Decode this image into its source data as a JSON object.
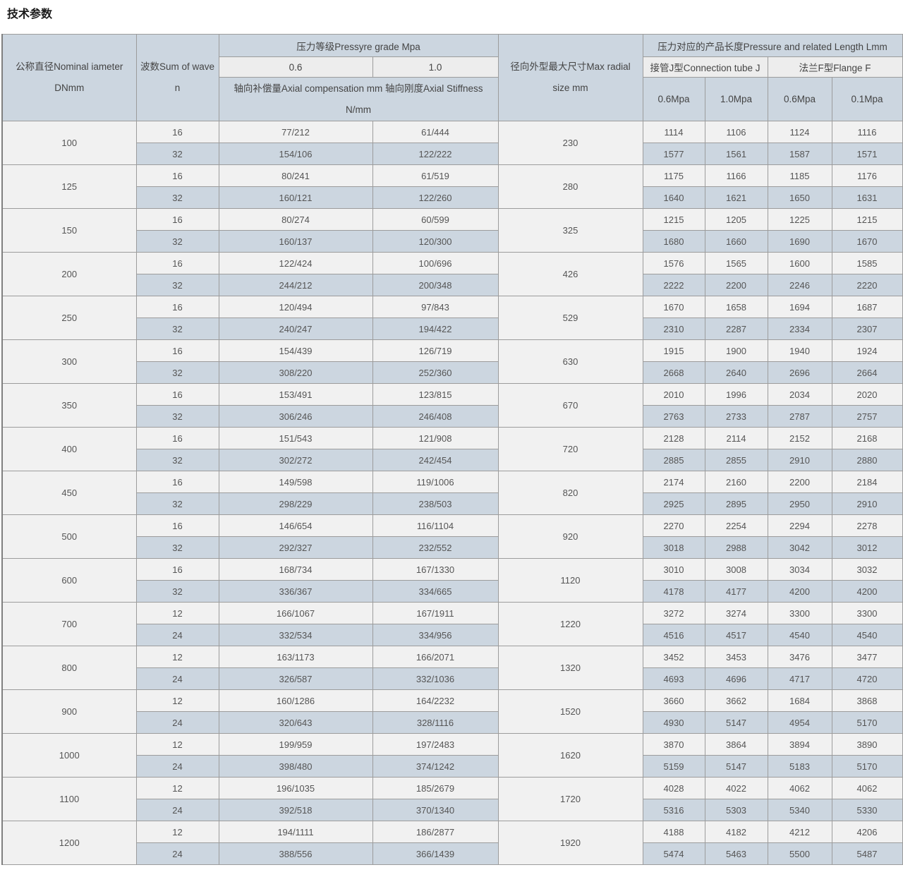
{
  "page": {
    "title": "技术参数"
  },
  "colors": {
    "header_bg": "#ccd6e0",
    "subheader_bg": "#ededed",
    "row_light_bg": "#f1f1f1",
    "row_blue_bg": "#ccd6e0",
    "border": "#9c9c9c",
    "text": "#555555"
  },
  "table": {
    "header": {
      "dn": [
        "公称直径Nominal iameter",
        "DNmm"
      ],
      "wave": [
        "波数Sum of wave",
        "n"
      ],
      "pressure_grade": "压力等级Pressyre grade Mpa",
      "grade_06": "0.6",
      "grade_10": "1.0",
      "axial": [
        "轴向补偿量Axial compensation mm 轴向刚度Axial Stiffness",
        "N/mm"
      ],
      "radial": [
        "径向外型最大尺寸Max radial",
        "size mm"
      ],
      "length": "压力对应的产品长度Pressure and related Length Lmm",
      "conn_j": "接管J型Connection tube J",
      "flange_f": "法兰F型Flange F",
      "j_06": "0.6Mpa",
      "j_10": "1.0Mpa",
      "f_06": "0.6Mpa",
      "f_01": "0.1Mpa"
    },
    "groups": [
      {
        "dn": "100",
        "radial": "230",
        "rows": [
          {
            "n": "16",
            "c06": "77/212",
            "c10": "61/444",
            "j06": "1114",
            "j10": "1106",
            "f06": "1124",
            "f01": "1116"
          },
          {
            "n": "32",
            "c06": "154/106",
            "c10": "122/222",
            "j06": "1577",
            "j10": "1561",
            "f06": "1587",
            "f01": "1571"
          }
        ]
      },
      {
        "dn": "125",
        "radial": "280",
        "rows": [
          {
            "n": "16",
            "c06": "80/241",
            "c10": "61/519",
            "j06": "1175",
            "j10": "1166",
            "f06": "1185",
            "f01": "1176"
          },
          {
            "n": "32",
            "c06": "160/121",
            "c10": "122/260",
            "j06": "1640",
            "j10": "1621",
            "f06": "1650",
            "f01": "1631"
          }
        ]
      },
      {
        "dn": "150",
        "radial": "325",
        "rows": [
          {
            "n": "16",
            "c06": "80/274",
            "c10": "60/599",
            "j06": "1215",
            "j10": "1205",
            "f06": "1225",
            "f01": "1215"
          },
          {
            "n": "32",
            "c06": "160/137",
            "c10": "120/300",
            "j06": "1680",
            "j10": "1660",
            "f06": "1690",
            "f01": "1670"
          }
        ]
      },
      {
        "dn": "200",
        "radial": "426",
        "rows": [
          {
            "n": "16",
            "c06": "122/424",
            "c10": "100/696",
            "j06": "1576",
            "j10": "1565",
            "f06": "1600",
            "f01": "1585"
          },
          {
            "n": "32",
            "c06": "244/212",
            "c10": "200/348",
            "j06": "2222",
            "j10": "2200",
            "f06": "2246",
            "f01": "2220"
          }
        ]
      },
      {
        "dn": "250",
        "radial": "529",
        "rows": [
          {
            "n": "16",
            "c06": "120/494",
            "c10": "97/843",
            "j06": "1670",
            "j10": "1658",
            "f06": "1694",
            "f01": "1687"
          },
          {
            "n": "32",
            "c06": "240/247",
            "c10": "194/422",
            "j06": "2310",
            "j10": "2287",
            "f06": "2334",
            "f01": "2307"
          }
        ]
      },
      {
        "dn": "300",
        "radial": "630",
        "rows": [
          {
            "n": "16",
            "c06": "154/439",
            "c10": "126/719",
            "j06": "1915",
            "j10": "1900",
            "f06": "1940",
            "f01": "1924"
          },
          {
            "n": "32",
            "c06": "308/220",
            "c10": "252/360",
            "j06": "2668",
            "j10": "2640",
            "f06": "2696",
            "f01": "2664"
          }
        ]
      },
      {
        "dn": "350",
        "radial": "670",
        "rows": [
          {
            "n": "16",
            "c06": "153/491",
            "c10": "123/815",
            "j06": "2010",
            "j10": "1996",
            "f06": "2034",
            "f01": "2020"
          },
          {
            "n": "32",
            "c06": "306/246",
            "c10": "246/408",
            "j06": "2763",
            "j10": "2733",
            "f06": "2787",
            "f01": "2757"
          }
        ]
      },
      {
        "dn": "400",
        "radial": "720",
        "rows": [
          {
            "n": "16",
            "c06": "151/543",
            "c10": "121/908",
            "j06": "2128",
            "j10": "2114",
            "f06": "2152",
            "f01": "2168"
          },
          {
            "n": "32",
            "c06": "302/272",
            "c10": "242/454",
            "j06": "2885",
            "j10": "2855",
            "f06": "2910",
            "f01": "2880"
          }
        ]
      },
      {
        "dn": "450",
        "radial": "820",
        "rows": [
          {
            "n": "16",
            "c06": "149/598",
            "c10": "119/1006",
            "j06": "2174",
            "j10": "2160",
            "f06": "2200",
            "f01": "2184"
          },
          {
            "n": "32",
            "c06": "298/229",
            "c10": "238/503",
            "j06": "2925",
            "j10": "2895",
            "f06": "2950",
            "f01": "2910"
          }
        ]
      },
      {
        "dn": "500",
        "radial": "920",
        "rows": [
          {
            "n": "16",
            "c06": "146/654",
            "c10": "116/1104",
            "j06": "2270",
            "j10": "2254",
            "f06": "2294",
            "f01": "2278"
          },
          {
            "n": "32",
            "c06": "292/327",
            "c10": "232/552",
            "j06": "3018",
            "j10": "2988",
            "f06": "3042",
            "f01": "3012"
          }
        ]
      },
      {
        "dn": "600",
        "radial": "1120",
        "rows": [
          {
            "n": "16",
            "c06": "168/734",
            "c10": "167/1330",
            "j06": "3010",
            "j10": "3008",
            "f06": "3034",
            "f01": "3032"
          },
          {
            "n": "32",
            "c06": "336/367",
            "c10": "334/665",
            "j06": "4178",
            "j10": "4177",
            "f06": "4200",
            "f01": "4200"
          }
        ]
      },
      {
        "dn": "700",
        "radial": "1220",
        "rows": [
          {
            "n": "12",
            "c06": "166/1067",
            "c10": "167/1911",
            "j06": "3272",
            "j10": "3274",
            "f06": "3300",
            "f01": "3300"
          },
          {
            "n": "24",
            "c06": "332/534",
            "c10": "334/956",
            "j06": "4516",
            "j10": "4517",
            "f06": "4540",
            "f01": "4540"
          }
        ]
      },
      {
        "dn": "800",
        "radial": "1320",
        "rows": [
          {
            "n": "12",
            "c06": "163/1173",
            "c10": "166/2071",
            "j06": "3452",
            "j10": "3453",
            "f06": "3476",
            "f01": "3477"
          },
          {
            "n": "24",
            "c06": "326/587",
            "c10": "332/1036",
            "j06": "4693",
            "j10": "4696",
            "f06": "4717",
            "f01": "4720"
          }
        ]
      },
      {
        "dn": "900",
        "radial": "1520",
        "rows": [
          {
            "n": "12",
            "c06": "160/1286",
            "c10": "164/2232",
            "j06": "3660",
            "j10": "3662",
            "f06": "1684",
            "f01": "3868"
          },
          {
            "n": "24",
            "c06": "320/643",
            "c10": "328/1116",
            "j06": "4930",
            "j10": "5147",
            "f06": "4954",
            "f01": "5170"
          }
        ]
      },
      {
        "dn": "1000",
        "radial": "1620",
        "rows": [
          {
            "n": "12",
            "c06": "199/959",
            "c10": "197/2483",
            "j06": "3870",
            "j10": "3864",
            "f06": "3894",
            "f01": "3890"
          },
          {
            "n": "24",
            "c06": "398/480",
            "c10": "374/1242",
            "j06": "5159",
            "j10": "5147",
            "f06": "5183",
            "f01": "5170"
          }
        ]
      },
      {
        "dn": "1100",
        "radial": "1720",
        "rows": [
          {
            "n": "12",
            "c06": "196/1035",
            "c10": "185/2679",
            "j06": "4028",
            "j10": "4022",
            "f06": "4062",
            "f01": "4062"
          },
          {
            "n": "24",
            "c06": "392/518",
            "c10": "370/1340",
            "j06": "5316",
            "j10": "5303",
            "f06": "5340",
            "f01": "5330"
          }
        ]
      },
      {
        "dn": "1200",
        "radial": "1920",
        "rows": [
          {
            "n": "12",
            "c06": "194/1111",
            "c10": "186/2877",
            "j06": "4188",
            "j10": "4182",
            "f06": "4212",
            "f01": "4206"
          },
          {
            "n": "24",
            "c06": "388/556",
            "c10": "366/1439",
            "j06": "5474",
            "j10": "5463",
            "f06": "5500",
            "f01": "5487"
          }
        ]
      }
    ]
  }
}
